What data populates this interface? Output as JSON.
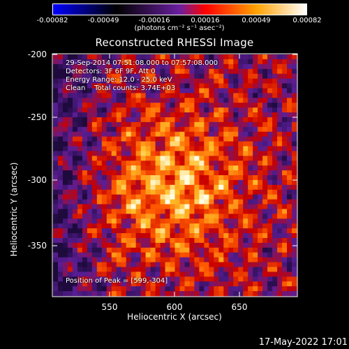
{
  "colorbar": {
    "ticks": [
      "-0.00082",
      "-0.00049",
      "-0.00016",
      "0.00016",
      "0.00049",
      "0.00082"
    ],
    "unit": "(photons cm⁻² s⁻¹ asec⁻²)",
    "range": [
      -0.00082,
      0.00082
    ],
    "colors": [
      "#0000ff",
      "#000000",
      "#6a1fa0",
      "#ff0000",
      "#ffa000",
      "#ffffff"
    ]
  },
  "chart_data": {
    "type": "heatmap",
    "title": "Reconstructed RHESSI Image",
    "xlabel": "Heliocentric X (arcsec)",
    "ylabel": "Heliocentric Y (arcsec)",
    "xlim": [
      506,
      692
    ],
    "ylim": [
      -392,
      -198
    ],
    "xticks": [
      "550",
      "600",
      "650"
    ],
    "yticks": [
      "-200",
      "-250",
      "-300",
      "-350"
    ],
    "peak": [
      599,
      -304
    ],
    "annotations": [
      "29-Sep-2014 07:51:08.000 to 07:57:08.000",
      "Detectors: 3F 6F 9F, Att 0",
      "Energy Range: 12.0 - 25.0 keV",
      "Clean    Total counts: 3.74E+03"
    ],
    "peak_label": "Position of Peak = [599,-304]"
  },
  "footer": {
    "date": "17-May-2022 17:01"
  }
}
